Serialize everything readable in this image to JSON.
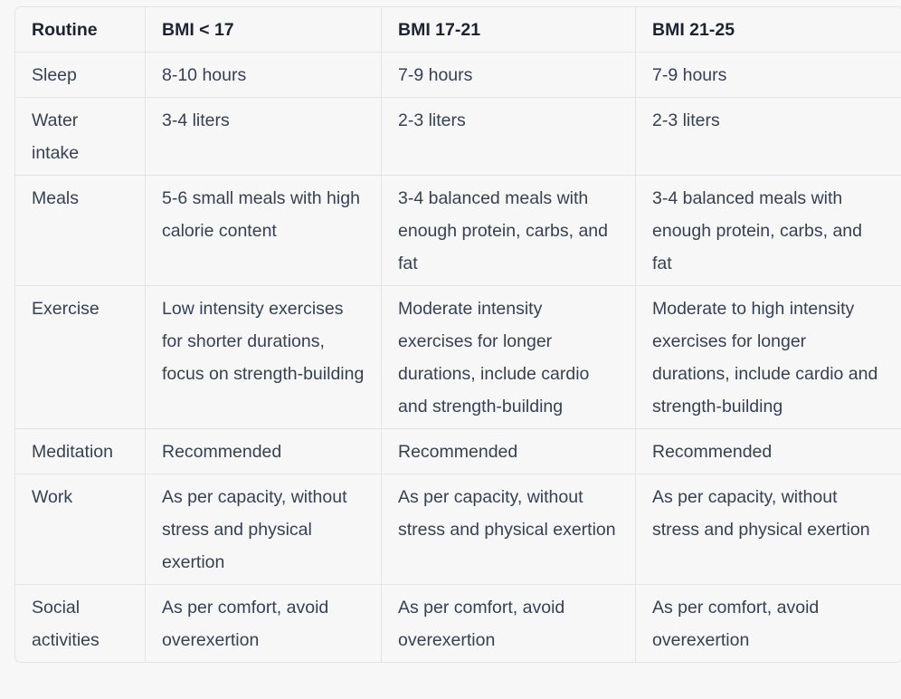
{
  "table": {
    "headers": [
      "Routine",
      "BMI < 17",
      "BMI 17-21",
      "BMI 21-25"
    ],
    "rows": [
      [
        "Sleep",
        "8-10 hours",
        "7-9 hours",
        "7-9 hours"
      ],
      [
        "Water intake",
        "3-4 liters",
        "2-3 liters",
        "2-3 liters"
      ],
      [
        "Meals",
        "5-6 small meals with high calorie content",
        "3-4 balanced meals with enough protein, carbs, and fat",
        "3-4 balanced meals with enough protein, carbs, and fat"
      ],
      [
        "Exercise",
        "Low intensity exercises for shorter durations, focus on strength-building",
        "Moderate intensity exercises for longer durations, include cardio and strength-building",
        "Moderate to high intensity exercises for longer durations, include cardio and strength-building"
      ],
      [
        "Meditation",
        "Recommended",
        "Recommended",
        "Recommended"
      ],
      [
        "Work",
        "As per capacity, without stress and physical exertion",
        "As per capacity, without stress and physical exertion",
        "As per capacity, without stress and physical exertion"
      ],
      [
        "Social activities",
        "As per comfort, avoid overexertion",
        "As per comfort, avoid overexertion",
        "As per comfort, avoid overexertion"
      ]
    ]
  }
}
